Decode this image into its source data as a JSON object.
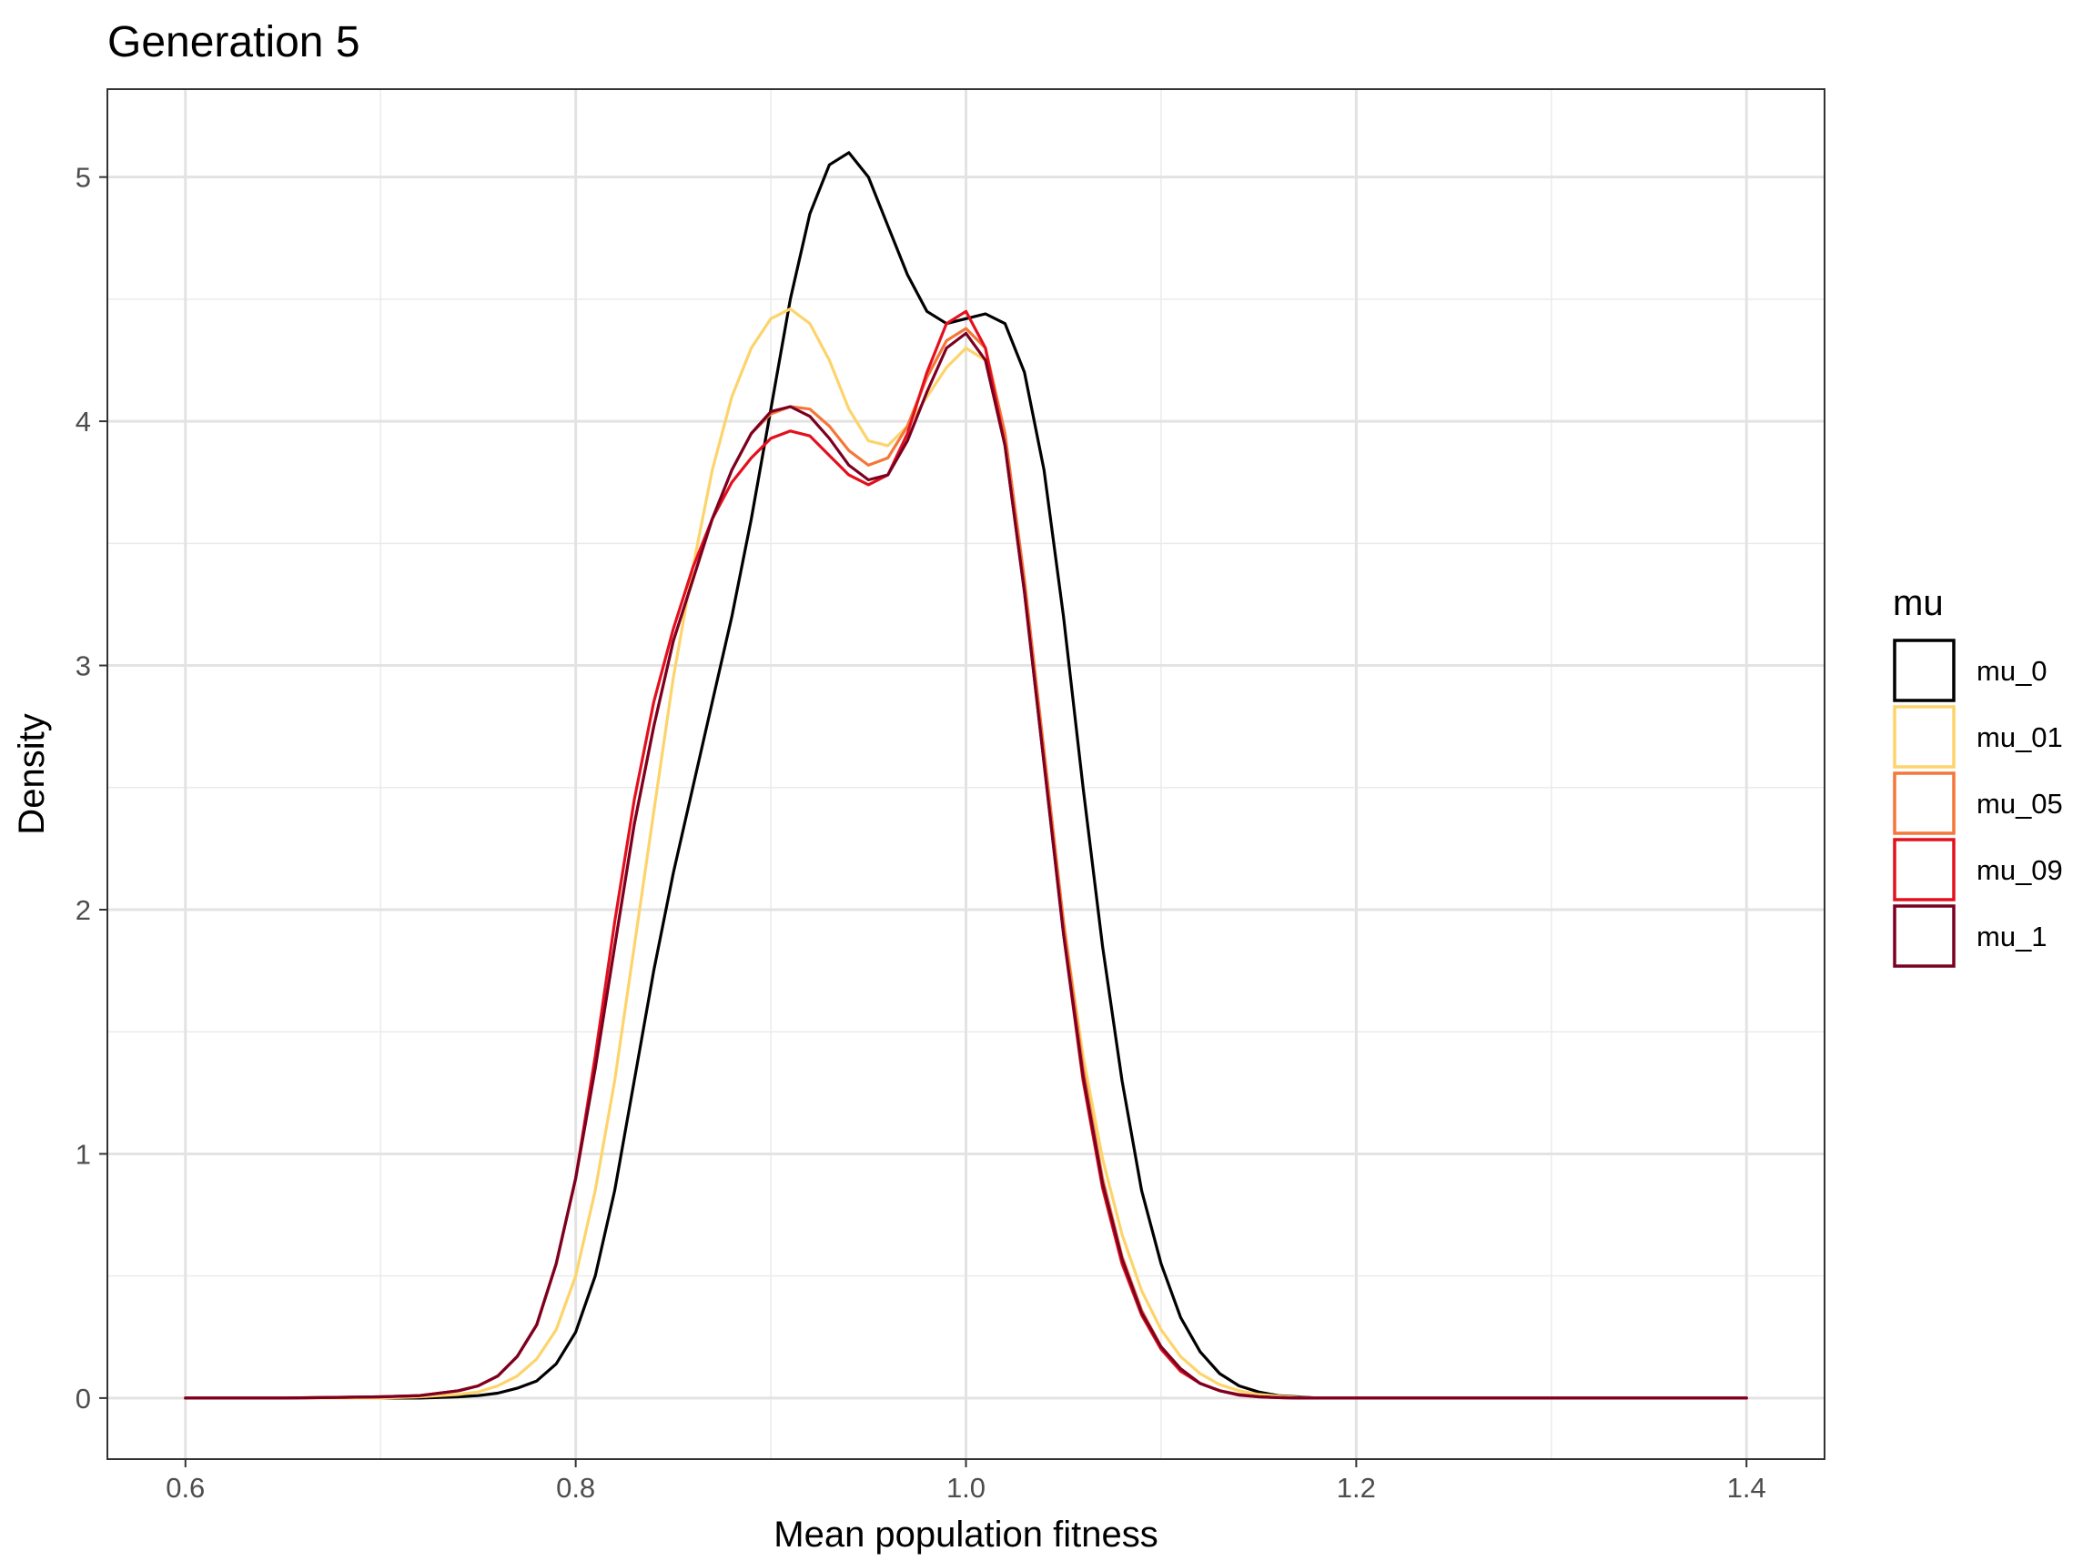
{
  "chart_data": {
    "type": "line",
    "title": "Generation 5",
    "xlabel": "Mean population fitness",
    "ylabel": "Density",
    "xlim": [
      0.56,
      1.44
    ],
    "ylim": [
      -0.25,
      5.36
    ],
    "x_ticks": [
      0.6,
      0.8,
      1.0,
      1.2,
      1.4
    ],
    "x_tick_labels": [
      "0.6",
      "0.8",
      "1.0",
      "1.2",
      "1.4"
    ],
    "y_ticks": [
      0,
      1,
      2,
      3,
      4,
      5
    ],
    "y_tick_labels": [
      "0",
      "1",
      "2",
      "3",
      "4",
      "5"
    ],
    "grid": true,
    "legend": {
      "title": "mu",
      "position": "right"
    },
    "x": [
      0.6,
      0.65,
      0.7,
      0.72,
      0.74,
      0.75,
      0.76,
      0.77,
      0.78,
      0.79,
      0.8,
      0.81,
      0.82,
      0.83,
      0.84,
      0.85,
      0.86,
      0.87,
      0.88,
      0.89,
      0.9,
      0.91,
      0.92,
      0.93,
      0.94,
      0.95,
      0.96,
      0.97,
      0.98,
      0.99,
      1.0,
      1.01,
      1.02,
      1.03,
      1.04,
      1.05,
      1.06,
      1.07,
      1.08,
      1.09,
      1.1,
      1.11,
      1.12,
      1.13,
      1.14,
      1.15,
      1.16,
      1.17,
      1.18,
      1.19,
      1.2,
      1.25,
      1.3,
      1.35,
      1.4
    ],
    "series": [
      {
        "name": "mu_0",
        "color": "#000000",
        "values": [
          0,
          0,
          0,
          0,
          0.005,
          0.01,
          0.02,
          0.04,
          0.07,
          0.14,
          0.27,
          0.5,
          0.85,
          1.3,
          1.75,
          2.15,
          2.5,
          2.85,
          3.2,
          3.6,
          4.05,
          4.5,
          4.85,
          5.05,
          5.1,
          5.0,
          4.8,
          4.6,
          4.45,
          4.4,
          4.42,
          4.44,
          4.4,
          4.2,
          3.8,
          3.2,
          2.5,
          1.85,
          1.3,
          0.85,
          0.55,
          0.33,
          0.19,
          0.1,
          0.05,
          0.025,
          0.01,
          0.005,
          0,
          0,
          0,
          0,
          0,
          0,
          0
        ]
      },
      {
        "name": "mu_01",
        "color": "#FDD46B",
        "values": [
          0,
          0,
          0,
          0.005,
          0.015,
          0.025,
          0.05,
          0.09,
          0.16,
          0.28,
          0.5,
          0.85,
          1.3,
          1.85,
          2.4,
          2.95,
          3.4,
          3.8,
          4.1,
          4.3,
          4.42,
          4.46,
          4.4,
          4.25,
          4.05,
          3.92,
          3.9,
          3.98,
          4.1,
          4.22,
          4.3,
          4.25,
          3.9,
          3.3,
          2.6,
          1.95,
          1.4,
          0.98,
          0.67,
          0.44,
          0.28,
          0.17,
          0.1,
          0.055,
          0.03,
          0.015,
          0.008,
          0.003,
          0,
          0,
          0,
          0,
          0,
          0,
          0
        ]
      },
      {
        "name": "mu_05",
        "color": "#F4773A",
        "values": [
          0,
          0,
          0.005,
          0.01,
          0.03,
          0.05,
          0.09,
          0.17,
          0.3,
          0.55,
          0.9,
          1.35,
          1.85,
          2.35,
          2.75,
          3.1,
          3.35,
          3.6,
          3.8,
          3.95,
          4.03,
          4.06,
          4.05,
          3.98,
          3.88,
          3.82,
          3.85,
          3.98,
          4.18,
          4.33,
          4.38,
          4.3,
          3.95,
          3.35,
          2.65,
          1.95,
          1.35,
          0.9,
          0.58,
          0.36,
          0.21,
          0.12,
          0.06,
          0.03,
          0.015,
          0.006,
          0.002,
          0,
          0,
          0,
          0,
          0,
          0,
          0,
          0
        ]
      },
      {
        "name": "mu_09",
        "color": "#E3101E",
        "values": [
          0,
          0,
          0.005,
          0.01,
          0.03,
          0.05,
          0.09,
          0.17,
          0.3,
          0.55,
          0.9,
          1.4,
          1.95,
          2.45,
          2.85,
          3.15,
          3.4,
          3.6,
          3.75,
          3.85,
          3.93,
          3.96,
          3.94,
          3.86,
          3.78,
          3.74,
          3.78,
          3.95,
          4.2,
          4.4,
          4.45,
          4.3,
          3.9,
          3.3,
          2.6,
          1.9,
          1.3,
          0.86,
          0.55,
          0.34,
          0.2,
          0.11,
          0.06,
          0.03,
          0.012,
          0.005,
          0.002,
          0,
          0,
          0,
          0,
          0,
          0,
          0,
          0
        ]
      },
      {
        "name": "mu_1",
        "color": "#7B0021",
        "values": [
          0,
          0,
          0.005,
          0.01,
          0.03,
          0.05,
          0.09,
          0.17,
          0.3,
          0.55,
          0.9,
          1.35,
          1.85,
          2.35,
          2.75,
          3.1,
          3.35,
          3.6,
          3.8,
          3.95,
          4.04,
          4.06,
          4.02,
          3.93,
          3.82,
          3.76,
          3.78,
          3.92,
          4.12,
          4.3,
          4.36,
          4.25,
          3.9,
          3.3,
          2.6,
          1.9,
          1.32,
          0.88,
          0.57,
          0.35,
          0.21,
          0.12,
          0.06,
          0.03,
          0.013,
          0.005,
          0.002,
          0,
          0,
          0,
          0,
          0,
          0,
          0,
          0
        ]
      }
    ]
  }
}
